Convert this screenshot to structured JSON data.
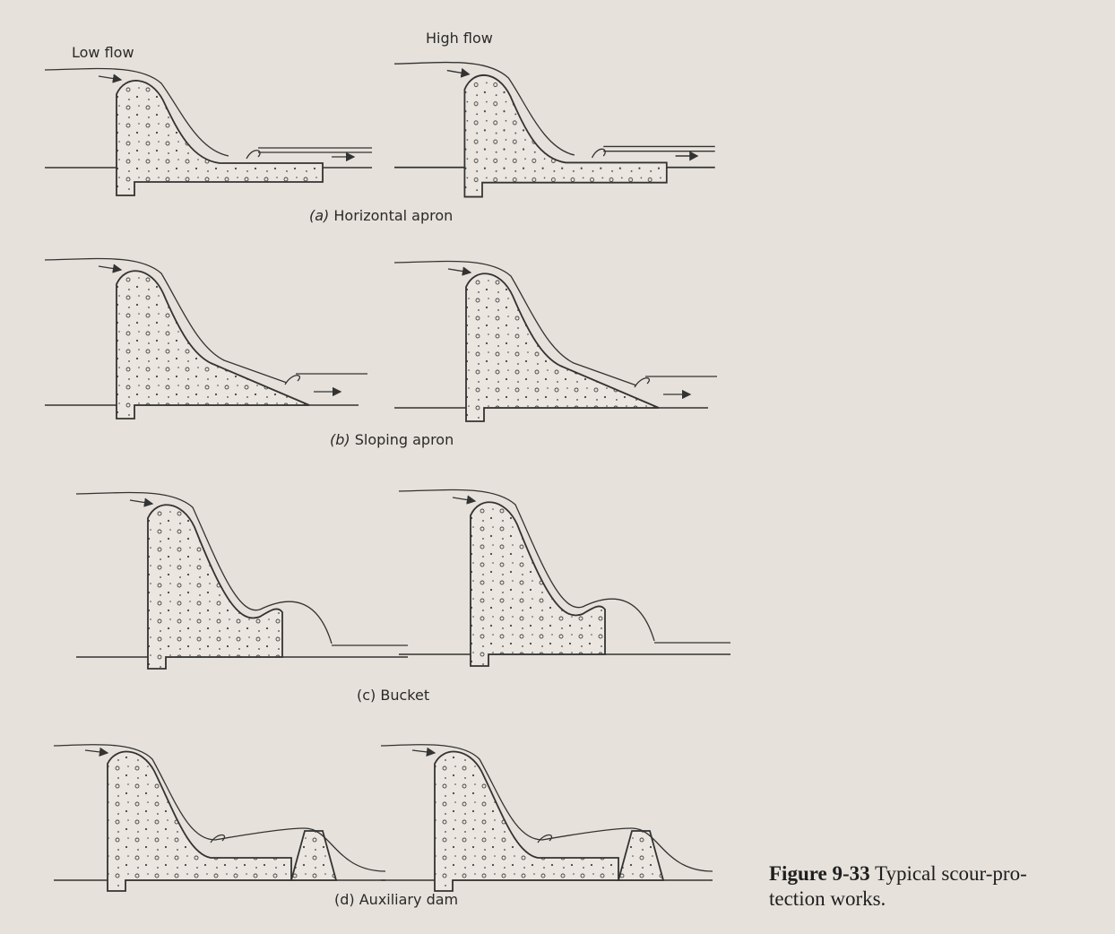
{
  "labels": {
    "low_flow": "Low flow",
    "high_flow": "High flow"
  },
  "panels": [
    {
      "label": "(a)",
      "title": "Horizontal apron"
    },
    {
      "label": "(b)",
      "title": "Sloping apron"
    },
    {
      "label": "(c)",
      "title": "Bucket"
    },
    {
      "label": "(d)",
      "title": "Auxiliary dam"
    }
  ],
  "caption": {
    "number": "Figure 9-33",
    "lines": [
      "Typical scour-pro-",
      "tection works."
    ]
  }
}
